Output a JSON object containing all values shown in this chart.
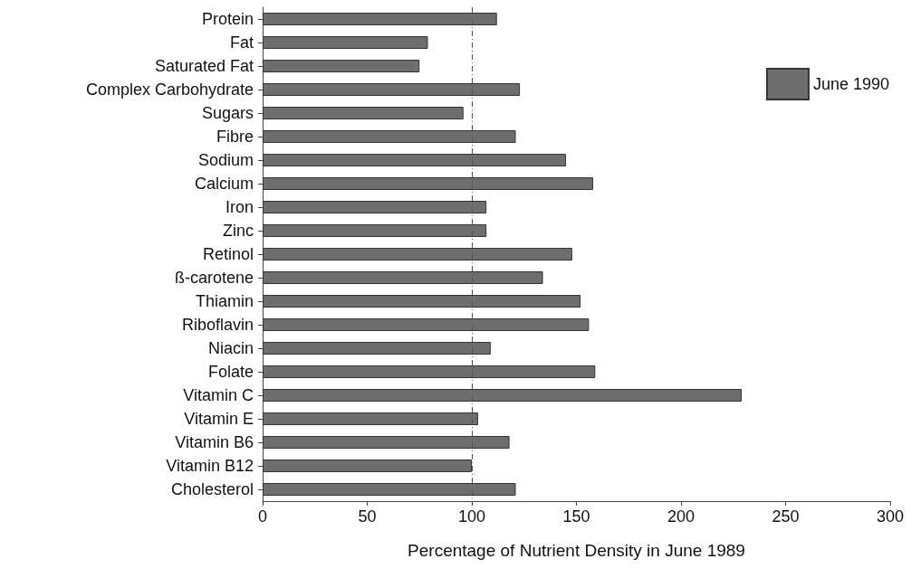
{
  "chart_data": {
    "type": "bar",
    "orientation": "horizontal",
    "xlabel": "Percentage of Nutrient Density in June 1989",
    "categories": [
      "Protein",
      "Fat",
      "Saturated Fat",
      "Complex Carbohydrate",
      "Sugars",
      "Fibre",
      "Sodium",
      "Calcium",
      "Iron",
      "Zinc",
      "Retinol",
      "ß-carotene",
      "Thiamin",
      "Riboflavin",
      "Niacin",
      "Folate",
      "Vitamin C",
      "Vitamin E",
      "Vitamin B6",
      "Vitamin B12",
      "Cholesterol"
    ],
    "series": [
      {
        "name": "June 1990",
        "color": "#6e6e6e",
        "values": [
          112,
          79,
          75,
          123,
          96,
          121,
          145,
          158,
          107,
          107,
          148,
          134,
          152,
          156,
          109,
          159,
          229,
          103,
          118,
          100,
          121
        ]
      }
    ],
    "xlim": [
      0,
      300
    ],
    "xticks": [
      0,
      50,
      100,
      150,
      200,
      250,
      300
    ],
    "ref_lines": [
      {
        "axis": "x",
        "value": 100,
        "line_style": "dashed",
        "color": "#555555"
      }
    ],
    "legend": "top right",
    "grid": false
  }
}
